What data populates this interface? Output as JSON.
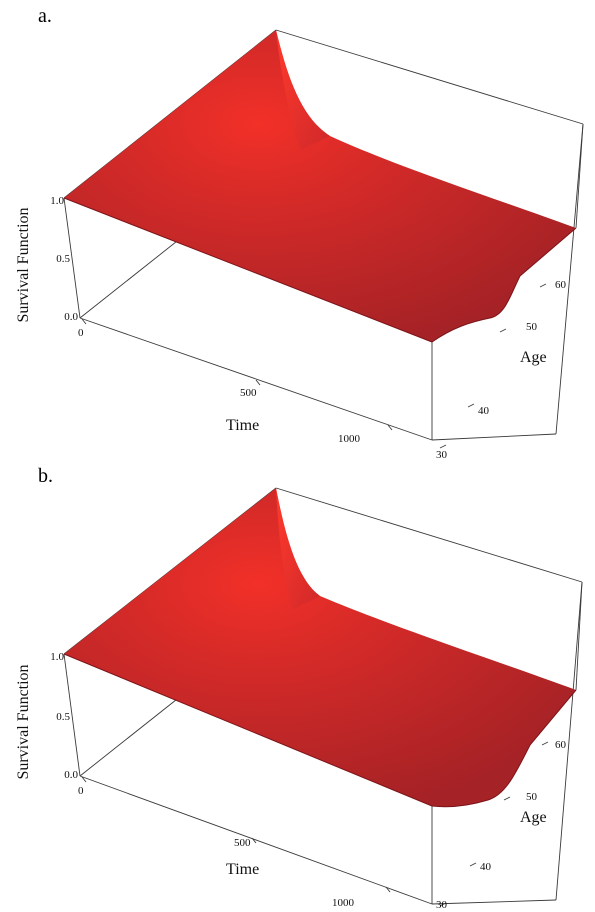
{
  "colors": {
    "surface_base": "#b2282a",
    "surface_bright": "#f22e26",
    "surface_dark": "#9a1e22",
    "edge": "#6e1216"
  },
  "chart_data": [
    {
      "type": "surface3d",
      "panel_label": "a.",
      "xlabel": "Time",
      "ylabel": "Age",
      "zlabel": "Survival Function",
      "x_ticks": [
        "0",
        "500",
        "1000"
      ],
      "x_tick_values": [
        0,
        500,
        1000
      ],
      "xlim": [
        0,
        1200
      ],
      "y_ticks": [
        "30",
        "40",
        "50",
        "60"
      ],
      "y_tick_values": [
        30,
        40,
        50,
        60
      ],
      "ylim": [
        30,
        65
      ],
      "z_ticks": [
        "0.0",
        "0.5",
        "1.0"
      ],
      "z_tick_values": [
        0,
        0.5,
        1
      ],
      "zlim": [
        0,
        1
      ],
      "surface": {
        "time": [
          0,
          100,
          200,
          400,
          600,
          800,
          1000,
          1200
        ],
        "age": [
          30,
          40,
          50,
          60,
          65
        ],
        "survival": [
          [
            1.0,
            0.995,
            0.99,
            0.98,
            0.97,
            0.96,
            0.95,
            0.94
          ],
          [
            1.0,
            0.995,
            0.99,
            0.98,
            0.97,
            0.96,
            0.95,
            0.94
          ],
          [
            1.0,
            0.995,
            0.99,
            0.98,
            0.97,
            0.96,
            0.95,
            0.94
          ],
          [
            1.0,
            0.995,
            0.99,
            0.98,
            0.97,
            0.96,
            0.95,
            0.94
          ],
          [
            1.0,
            0.995,
            0.99,
            0.98,
            0.97,
            0.96,
            0.95,
            0.94
          ]
        ]
      }
    },
    {
      "type": "surface3d",
      "panel_label": "b.",
      "xlabel": "Time",
      "ylabel": "Age",
      "zlabel": "Survival Function",
      "x_ticks": [
        "0",
        "500",
        "1000"
      ],
      "x_tick_values": [
        0,
        500,
        1000
      ],
      "xlim": [
        0,
        1200
      ],
      "y_ticks": [
        "30",
        "40",
        "50",
        "60"
      ],
      "y_tick_values": [
        30,
        40,
        50,
        60
      ],
      "ylim": [
        30,
        65
      ],
      "z_ticks": [
        "0.0",
        "0.5",
        "1.0"
      ],
      "z_tick_values": [
        0,
        0.5,
        1
      ],
      "zlim": [
        0,
        1
      ],
      "surface": {
        "time": [
          0,
          100,
          200,
          400,
          600,
          800,
          1000,
          1200
        ],
        "age": [
          30,
          40,
          50,
          60,
          65
        ],
        "survival": [
          [
            1.0,
            0.995,
            0.99,
            0.98,
            0.97,
            0.96,
            0.95,
            0.94
          ],
          [
            1.0,
            0.995,
            0.99,
            0.98,
            0.97,
            0.96,
            0.95,
            0.94
          ],
          [
            1.0,
            0.995,
            0.99,
            0.98,
            0.97,
            0.96,
            0.95,
            0.94
          ],
          [
            1.0,
            0.995,
            0.99,
            0.98,
            0.97,
            0.96,
            0.95,
            0.94
          ],
          [
            1.0,
            0.995,
            0.99,
            0.98,
            0.97,
            0.96,
            0.95,
            0.94
          ]
        ]
      }
    }
  ]
}
